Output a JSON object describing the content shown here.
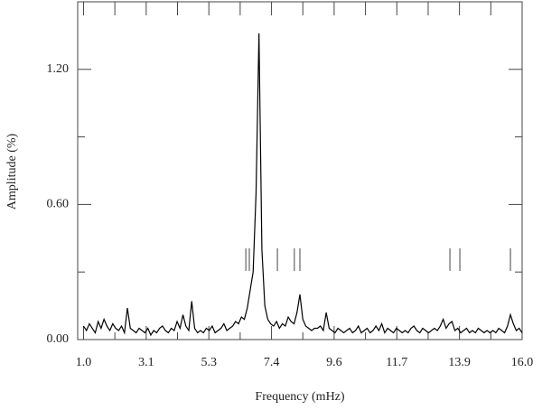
{
  "chart_data": {
    "type": "line",
    "xlabel": "Frequency (mHz)",
    "ylabel": "Amplitude (%)",
    "color": "#000000",
    "xlim": [
      0.8,
      16.0
    ],
    "ylim": [
      0,
      1.5
    ],
    "xticks": [
      {
        "value": 1.0,
        "label": "1.0"
      },
      {
        "value": 3.143,
        "label": "3.1"
      },
      {
        "value": 5.286,
        "label": "5.3"
      },
      {
        "value": 7.429,
        "label": "7.4"
      },
      {
        "value": 9.571,
        "label": "9.6"
      },
      {
        "value": 11.714,
        "label": "11.7"
      },
      {
        "value": 13.857,
        "label": "13.9"
      },
      {
        "value": 16.0,
        "label": "16.0"
      }
    ],
    "xminorticks": [
      2.071,
      4.214,
      6.357,
      8.5,
      10.643,
      12.786,
      14.929
    ],
    "yticks": [
      {
        "value": 0,
        "label": "0.00"
      },
      {
        "value": 0.6,
        "label": "0.60"
      },
      {
        "value": 1.2,
        "label": "1.20"
      }
    ],
    "yminorticks": [
      0.3,
      0.9,
      1.5
    ],
    "markers": [
      6.55,
      6.67,
      7.63,
      8.21,
      8.4,
      13.53,
      13.87,
      15.6
    ],
    "x": [
      1.0,
      1.1,
      1.2,
      1.3,
      1.4,
      1.5,
      1.6,
      1.7,
      1.8,
      1.9,
      2.0,
      2.1,
      2.2,
      2.3,
      2.4,
      2.5,
      2.6,
      2.7,
      2.8,
      2.9,
      3.0,
      3.1,
      3.2,
      3.3,
      3.4,
      3.5,
      3.6,
      3.7,
      3.8,
      3.9,
      4.0,
      4.1,
      4.2,
      4.3,
      4.4,
      4.5,
      4.6,
      4.7,
      4.8,
      4.9,
      5.0,
      5.1,
      5.2,
      5.3,
      5.4,
      5.5,
      5.6,
      5.7,
      5.8,
      5.9,
      6.0,
      6.1,
      6.2,
      6.3,
      6.4,
      6.5,
      6.6,
      6.7,
      6.8,
      6.9,
      7.0,
      7.1,
      7.2,
      7.3,
      7.4,
      7.5,
      7.6,
      7.7,
      7.8,
      7.9,
      8.0,
      8.1,
      8.2,
      8.3,
      8.4,
      8.5,
      8.6,
      8.7,
      8.8,
      8.9,
      9.0,
      9.1,
      9.2,
      9.3,
      9.4,
      9.5,
      9.6,
      9.7,
      9.8,
      9.9,
      10.0,
      10.1,
      10.2,
      10.3,
      10.4,
      10.5,
      10.6,
      10.7,
      10.8,
      10.9,
      11.0,
      11.1,
      11.2,
      11.3,
      11.4,
      11.5,
      11.6,
      11.7,
      11.8,
      11.9,
      12.0,
      12.1,
      12.2,
      12.3,
      12.4,
      12.5,
      12.6,
      12.7,
      12.8,
      12.9,
      13.0,
      13.1,
      13.2,
      13.3,
      13.4,
      13.5,
      13.6,
      13.7,
      13.8,
      13.9,
      14.0,
      14.1,
      14.2,
      14.3,
      14.4,
      14.5,
      14.6,
      14.7,
      14.8,
      14.9,
      15.0,
      15.1,
      15.2,
      15.3,
      15.4,
      15.5,
      15.6,
      15.7,
      15.8,
      15.9,
      16.0
    ],
    "values": [
      0.06,
      0.04,
      0.07,
      0.05,
      0.03,
      0.08,
      0.05,
      0.09,
      0.06,
      0.04,
      0.07,
      0.05,
      0.04,
      0.06,
      0.03,
      0.14,
      0.05,
      0.04,
      0.03,
      0.05,
      0.04,
      0.03,
      0.05,
      0.02,
      0.04,
      0.03,
      0.05,
      0.06,
      0.04,
      0.03,
      0.05,
      0.04,
      0.08,
      0.05,
      0.11,
      0.06,
      0.04,
      0.17,
      0.05,
      0.03,
      0.04,
      0.03,
      0.05,
      0.04,
      0.06,
      0.03,
      0.04,
      0.05,
      0.07,
      0.04,
      0.05,
      0.06,
      0.08,
      0.07,
      0.1,
      0.09,
      0.14,
      0.22,
      0.3,
      0.65,
      1.36,
      0.4,
      0.15,
      0.09,
      0.07,
      0.06,
      0.08,
      0.05,
      0.07,
      0.06,
      0.1,
      0.08,
      0.07,
      0.12,
      0.2,
      0.09,
      0.06,
      0.05,
      0.04,
      0.05,
      0.05,
      0.06,
      0.04,
      0.12,
      0.05,
      0.04,
      0.03,
      0.05,
      0.04,
      0.03,
      0.04,
      0.05,
      0.03,
      0.04,
      0.06,
      0.03,
      0.04,
      0.05,
      0.03,
      0.04,
      0.06,
      0.04,
      0.07,
      0.03,
      0.05,
      0.04,
      0.03,
      0.05,
      0.04,
      0.03,
      0.04,
      0.03,
      0.05,
      0.06,
      0.04,
      0.03,
      0.05,
      0.04,
      0.03,
      0.04,
      0.05,
      0.04,
      0.06,
      0.09,
      0.05,
      0.07,
      0.08,
      0.04,
      0.05,
      0.03,
      0.04,
      0.05,
      0.03,
      0.04,
      0.03,
      0.05,
      0.04,
      0.03,
      0.04,
      0.03,
      0.04,
      0.03,
      0.05,
      0.04,
      0.03,
      0.06,
      0.11,
      0.07,
      0.04,
      0.05,
      0.03
    ]
  }
}
